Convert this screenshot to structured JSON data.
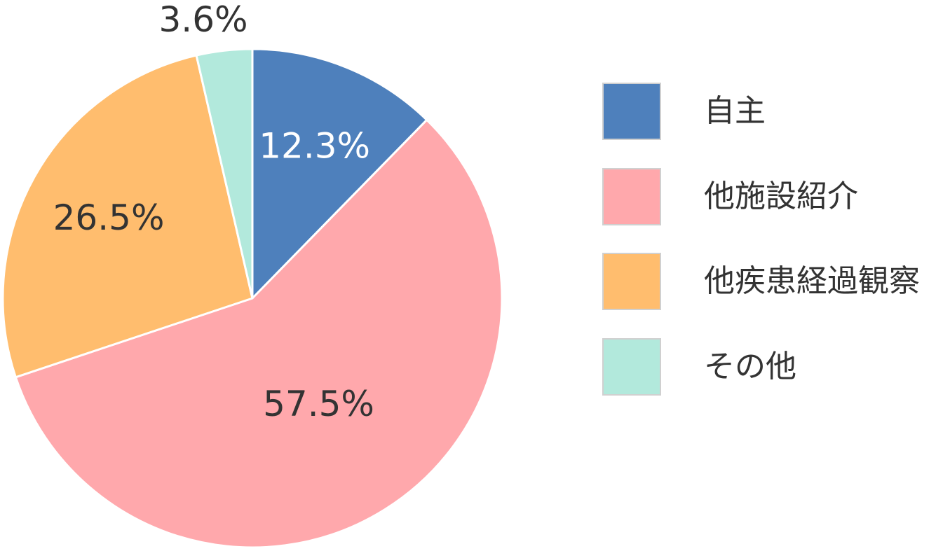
{
  "chart_data": {
    "type": "pie",
    "title": "",
    "start_angle_deg": 0,
    "direction": "clockwise",
    "slices": [
      {
        "label": "自主",
        "value": 12.3,
        "value_label": "12.3%",
        "color": "#4e80bc",
        "label_color": "#ffffff"
      },
      {
        "label": "他施設紹介",
        "value": 57.5,
        "value_label": "57.5%",
        "color": "#ffa8ac",
        "label_color": "#333333"
      },
      {
        "label": "他疾患経過観察",
        "value": 26.5,
        "value_label": "26.5%",
        "color": "#ffbd6e",
        "label_color": "#333333"
      },
      {
        "label": "その他",
        "value": 3.6,
        "value_label": "3.6%",
        "color": "#b2e9dc",
        "label_color": "#333333",
        "label_outside": true
      }
    ],
    "legend_position": "right"
  }
}
